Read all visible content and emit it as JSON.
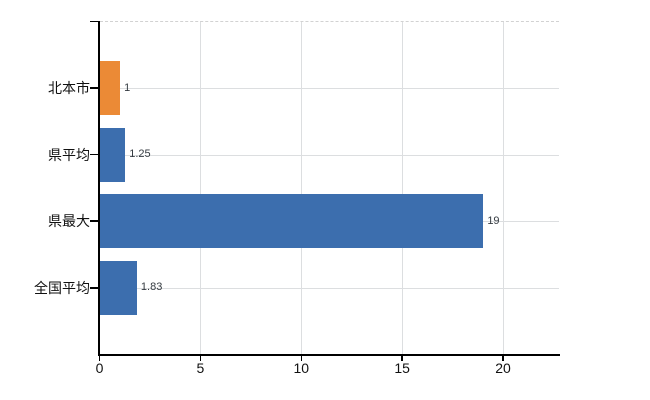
{
  "chart_data": {
    "type": "bar",
    "orientation": "horizontal",
    "title": "",
    "xlabel": "",
    "ylabel": "",
    "categories": [
      "北本市",
      "県平均",
      "県最大",
      "全国平均"
    ],
    "values": [
      1,
      1.25,
      19,
      1.83
    ],
    "value_labels": [
      "1",
      "1.25",
      "19",
      "1.83"
    ],
    "bar_colors": [
      "#EB8A36",
      "#3C6EAE",
      "#3C6EAE",
      "#3C6EAE"
    ],
    "xticks": [
      0,
      5,
      10,
      15,
      20
    ],
    "xtick_labels": [
      "0",
      "5",
      "10",
      "15",
      "20"
    ],
    "xlim": [
      0,
      22.8
    ],
    "grid": true,
    "legend": null
  },
  "colors": {
    "highlight_bar": "#EB8A36",
    "default_bar": "#3C6EAE",
    "gridline": "#dcdee0",
    "axis": "#000000",
    "tick_label": "#111111",
    "value_label": "#343a40",
    "background": "#ffffff"
  }
}
